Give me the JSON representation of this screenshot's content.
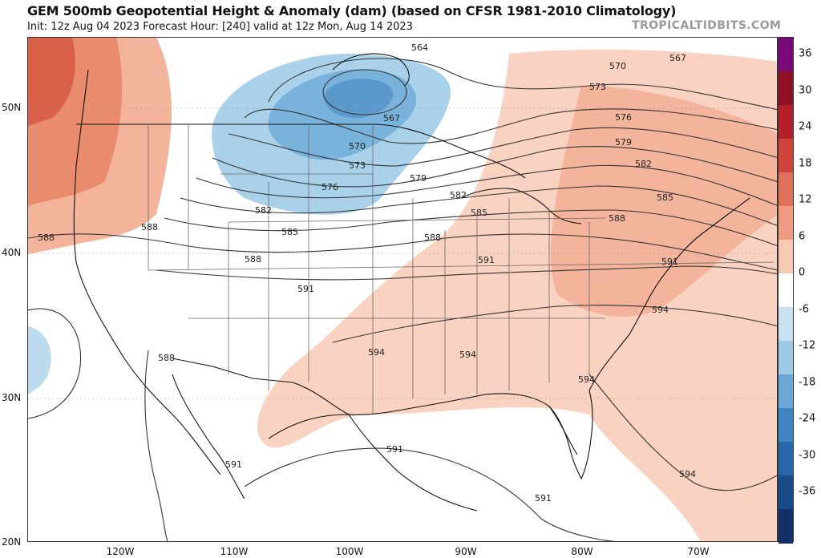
{
  "header": {
    "title": "GEM 500mb Geopotential Height & Anomaly (dam) (based on CFSR 1981-2010 Climatology)",
    "subtitle": "Init: 12z Aug 04 2023   Forecast Hour: [240]   valid at 12z Mon, Aug 14 2023",
    "brand": "TROPICALTIDBITS.COM"
  },
  "axes": {
    "latitudes": [
      "50N",
      "40N",
      "30N",
      "20N"
    ],
    "longitudes": [
      "120W",
      "110W",
      "100W",
      "90W",
      "80W",
      "70W"
    ]
  },
  "colorbar": {
    "labels": [
      "36",
      "30",
      "24",
      "18",
      "12",
      "6",
      "0",
      "-6",
      "-12",
      "-18",
      "-24",
      "-30",
      "-36"
    ],
    "colors": [
      "#7a0a7a",
      "#8f1020",
      "#b3202a",
      "#cf4438",
      "#e0705a",
      "#ef9b82",
      "#f9c9b4",
      "#ffffff",
      "#c9e2f1",
      "#9ccae6",
      "#6aa9d6",
      "#3f86c2",
      "#2766a8",
      "#1a4b8a",
      "#13306a"
    ]
  },
  "contour_labels": [
    {
      "id": "564",
      "text": "564"
    },
    {
      "id": "567",
      "text": "567"
    },
    {
      "id": "570",
      "text": "570"
    },
    {
      "id": "573",
      "text": "573"
    },
    {
      "id": "576",
      "text": "576"
    },
    {
      "id": "579",
      "text": "579"
    },
    {
      "id": "582",
      "text": "582"
    },
    {
      "id": "585",
      "text": "585"
    },
    {
      "id": "588",
      "text": "588"
    },
    {
      "id": "591",
      "text": "591"
    },
    {
      "id": "594",
      "text": "594"
    }
  ],
  "map_regions": {
    "trough": "upper-level low over central Canada (negative anomaly)",
    "ridge": "positive height anomalies over southern and eastern United States"
  }
}
